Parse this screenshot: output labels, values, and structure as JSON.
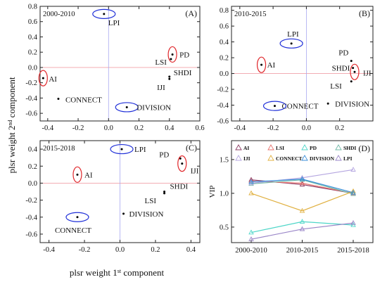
{
  "figure": {
    "shared_ylabel": "plsr weight 2nd component",
    "shared_xlabel": "plsr weight 1st component",
    "ylabel_parts": [
      "plsr weight 2",
      "nd",
      " component"
    ],
    "xlabel_parts": [
      "plsr weight 1",
      "st",
      " component"
    ]
  },
  "chart_data": [
    {
      "id": "A",
      "type": "scatter",
      "period": "2000-2010",
      "panel_label": "(A)",
      "xlim": [
        -0.45,
        0.6
      ],
      "ylim": [
        -0.7,
        0.8
      ],
      "xticks": [
        -0.4,
        -0.2,
        0.0,
        0.2,
        0.4,
        0.6
      ],
      "yticks": [
        -0.6,
        -0.4,
        -0.2,
        0.0,
        0.2,
        0.4,
        0.6,
        0.8
      ],
      "xticklabels": [
        "-0.4",
        "-0.2",
        "0.0",
        "0.2",
        "0.4",
        "0.6"
      ],
      "yticklabels": [
        "-0.6",
        "-0.4",
        "-0.2",
        "0.0",
        "0.2",
        "0.4",
        "0.6",
        "0.8"
      ],
      "points": [
        {
          "name": "LPI",
          "x": -0.03,
          "y": 0.7,
          "mark": "blue-ellipse"
        },
        {
          "name": "PD",
          "x": 0.42,
          "y": 0.17,
          "mark": "red-ellipse"
        },
        {
          "name": "LSI",
          "x": 0.41,
          "y": 0.11,
          "mark": ""
        },
        {
          "name": "SHDI",
          "x": 0.4,
          "y": -0.12,
          "mark": ""
        },
        {
          "name": "IJI",
          "x": 0.4,
          "y": -0.15,
          "mark": ""
        },
        {
          "name": "AI",
          "x": -0.43,
          "y": -0.14,
          "mark": "red-ellipse"
        },
        {
          "name": "CONNECT",
          "x": -0.33,
          "y": -0.41,
          "mark": ""
        },
        {
          "name": "DIVISION",
          "x": 0.12,
          "y": -0.52,
          "mark": "blue-ellipse"
        }
      ]
    },
    {
      "id": "B",
      "type": "scatter",
      "period": "2010-2015",
      "panel_label": "(B)",
      "xlim": [
        -0.45,
        0.4
      ],
      "ylim": [
        -0.6,
        0.85
      ],
      "xticks": [
        -0.4,
        -0.2,
        0.0,
        0.2
      ],
      "yticks": [
        -0.6,
        -0.4,
        -0.2,
        0.0,
        0.2,
        0.4,
        0.6,
        0.8
      ],
      "xticklabels": [
        "-0.4",
        "-0.2",
        "0.0",
        "0.2"
      ],
      "yticklabels": [
        "-0.6",
        "-0.4",
        "-0.2",
        "0.0",
        "0.2",
        "0.4",
        "0.6",
        "0.8"
      ],
      "points": [
        {
          "name": "LPI",
          "x": -0.09,
          "y": 0.38,
          "mark": "blue-ellipse"
        },
        {
          "name": "PD",
          "x": 0.27,
          "y": 0.16,
          "mark": ""
        },
        {
          "name": "SHDI",
          "x": 0.28,
          "y": 0.07,
          "mark": ""
        },
        {
          "name": "IJI",
          "x": 0.29,
          "y": 0.02,
          "mark": "red-ellipse"
        },
        {
          "name": "LSI",
          "x": 0.27,
          "y": -0.1,
          "mark": ""
        },
        {
          "name": "AI",
          "x": -0.27,
          "y": 0.11,
          "mark": "red-ellipse"
        },
        {
          "name": "CONNECT",
          "x": -0.19,
          "y": -0.41,
          "mark": "blue-ellipse"
        },
        {
          "name": "DIVISION",
          "x": 0.13,
          "y": -0.38,
          "mark": ""
        }
      ]
    },
    {
      "id": "C",
      "type": "scatter",
      "period": "2015-2018",
      "panel_label": "(C)",
      "xlim": [
        -0.45,
        0.45
      ],
      "ylim": [
        -0.7,
        0.5
      ],
      "xticks": [
        -0.4,
        -0.2,
        0.0,
        0.2,
        0.4
      ],
      "yticks": [
        -0.6,
        -0.4,
        -0.2,
        0.0,
        0.2,
        0.4
      ],
      "xticklabels": [
        "-0.4",
        "-0.2",
        "0.0",
        "0.2",
        "0.4"
      ],
      "yticklabels": [
        "-0.6",
        "-0.4",
        "-0.2",
        "0.0",
        "0.2",
        "0.4"
      ],
      "points": [
        {
          "name": "LPI",
          "x": 0.01,
          "y": 0.4,
          "mark": "blue-ellipse"
        },
        {
          "name": "PD",
          "x": 0.34,
          "y": 0.29,
          "mark": ""
        },
        {
          "name": "IJI",
          "x": 0.35,
          "y": 0.23,
          "mark": "red-ellipse"
        },
        {
          "name": "SHDI",
          "x": 0.25,
          "y": -0.1,
          "mark": ""
        },
        {
          "name": "LSI",
          "x": 0.25,
          "y": -0.12,
          "mark": ""
        },
        {
          "name": "AI",
          "x": -0.24,
          "y": 0.1,
          "mark": "red-ellipse"
        },
        {
          "name": "CONNECT",
          "x": -0.24,
          "y": -0.4,
          "mark": "blue-ellipse"
        },
        {
          "name": "DIVISION",
          "x": 0.02,
          "y": -0.36,
          "mark": ""
        }
      ]
    },
    {
      "id": "D",
      "type": "line",
      "panel_label": "(D)",
      "ylabel": "VIP",
      "categories": [
        "2000-2010",
        "2010-2015",
        "2015-2018"
      ],
      "ylim": [
        0.27,
        1.78
      ],
      "yticks": [
        0.5,
        1.0,
        1.5
      ],
      "yticklabels": [
        "0.5",
        "1.0",
        "1.5"
      ],
      "legend_position": "top",
      "series": [
        {
          "name": "AI",
          "color": "#8B3A62",
          "values": [
            1.2,
            1.13,
            1.0
          ]
        },
        {
          "name": "LSI",
          "color": "#E8736E",
          "values": [
            1.18,
            1.15,
            1.0
          ]
        },
        {
          "name": "PD",
          "color": "#4DD6C8",
          "values": [
            0.42,
            0.58,
            0.53
          ]
        },
        {
          "name": "SHDI",
          "color": "#6FB8A6",
          "values": [
            1.14,
            1.2,
            0.99
          ]
        },
        {
          "name": "IJI",
          "color": "#B5A6E0",
          "values": [
            1.15,
            1.23,
            1.35
          ]
        },
        {
          "name": "CONNECT",
          "color": "#E0B040",
          "values": [
            1.0,
            0.74,
            1.03
          ]
        },
        {
          "name": "DIVISION",
          "color": "#3B8FD9",
          "values": [
            1.17,
            1.21,
            1.01
          ]
        },
        {
          "name": "LPI",
          "color": "#9A86C8",
          "values": [
            0.32,
            0.47,
            0.56
          ]
        }
      ]
    }
  ]
}
